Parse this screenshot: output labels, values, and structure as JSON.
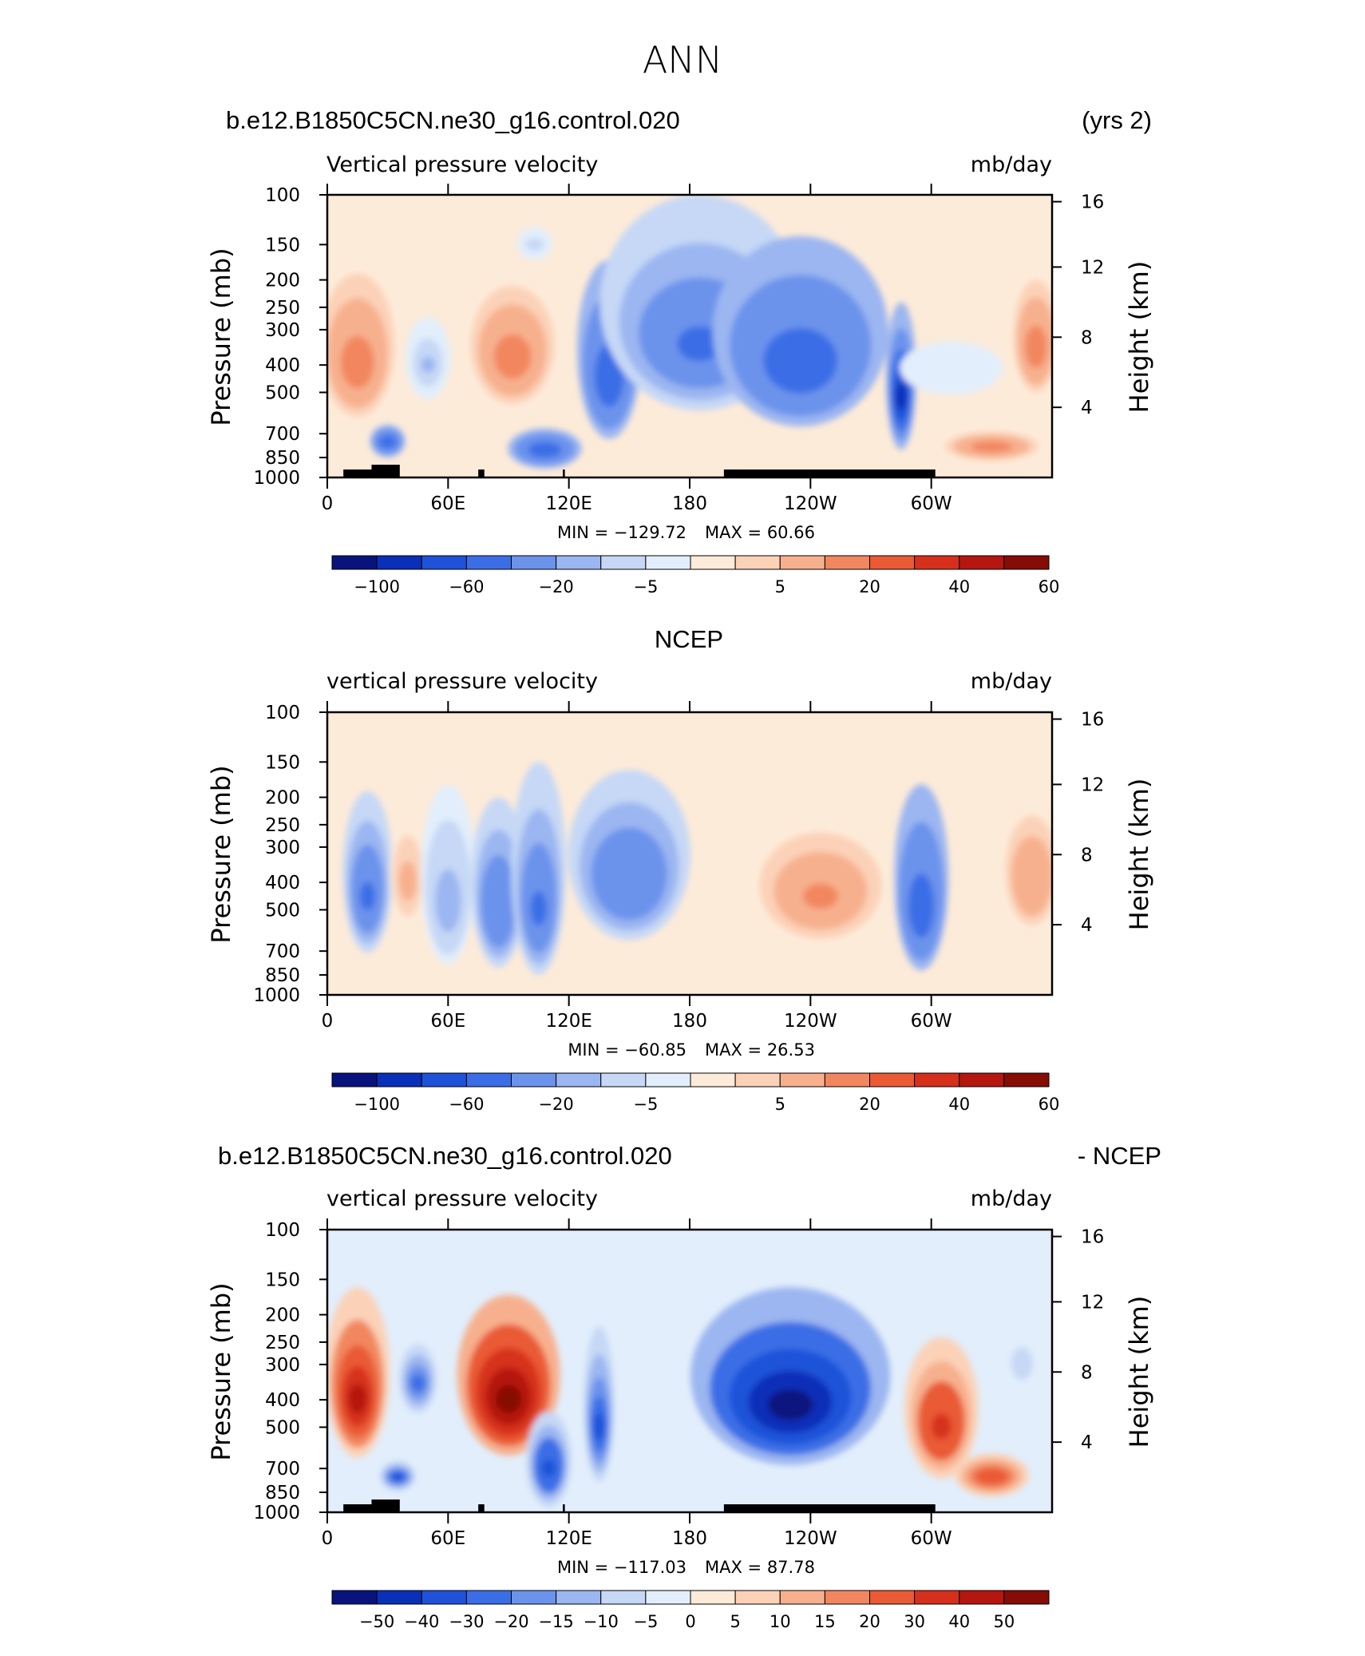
{
  "page_title": "ANN",
  "chart_data": [
    {
      "type": "heatmap",
      "panel": "model",
      "left_title": "b.e12.B1850C5CN.ne30_g16.control.020",
      "right_title": "(yrs 2)",
      "subtitle": "Vertical pressure velocity",
      "units": "mb/day",
      "ylabel": "Pressure (mb)",
      "ylabel_right": "Height (km)",
      "x_ticks": [
        "0",
        "60E",
        "120E",
        "180",
        "120W",
        "60W"
      ],
      "y_ticks": [
        "100",
        "150",
        "200",
        "250",
        "300",
        "400",
        "500",
        "700",
        "850",
        "1000"
      ],
      "y_ticks_right": [
        "16",
        "12",
        "8",
        "4"
      ],
      "min_label": "MIN = −129.72",
      "max_label": "MAX = 60.66",
      "min": -129.72,
      "max": 60.66,
      "colorbar_labels": [
        "−100",
        "−60",
        "−20",
        "−5",
        "5",
        "20",
        "40",
        "60"
      ],
      "features": [
        {
          "lon": 15,
          "p": 400,
          "rx": 14,
          "dp": 420,
          "value": 30
        },
        {
          "lon": 30,
          "p": 750,
          "rx": 6,
          "dp": 200,
          "value": -50
        },
        {
          "lon": 50,
          "p": 400,
          "rx": 8,
          "dp": 260,
          "value": -12
        },
        {
          "lon": 92,
          "p": 380,
          "rx": 16,
          "dp": 340,
          "value": 30
        },
        {
          "lon": 103,
          "p": 150,
          "rx": 6,
          "dp": 40,
          "value": -8
        },
        {
          "lon": 108,
          "p": 800,
          "rx": 14,
          "dp": 260,
          "value": -55
        },
        {
          "lon": 140,
          "p": 450,
          "rx": 12,
          "dp": 560,
          "value": -55
        },
        {
          "lon": 185,
          "p": 340,
          "rx": 40,
          "dp": 480,
          "value": -45
        },
        {
          "lon": 235,
          "p": 400,
          "rx": 35,
          "dp": 520,
          "value": -50
        },
        {
          "lon": 285,
          "p": 520,
          "rx": 5,
          "dp": 560,
          "value": -90
        },
        {
          "lon": 310,
          "p": 420,
          "rx": 20,
          "dp": 180,
          "value": -4
        },
        {
          "lon": 330,
          "p": 780,
          "rx": 18,
          "dp": 180,
          "value": 28
        },
        {
          "lon": 352,
          "p": 350,
          "rx": 8,
          "dp": 300,
          "value": 30
        }
      ]
    },
    {
      "type": "heatmap",
      "panel": "obs",
      "left_title": "",
      "center_title": "NCEP",
      "right_title": "",
      "subtitle": "vertical pressure velocity",
      "units": "mb/day",
      "ylabel": "Pressure (mb)",
      "ylabel_right": "Height (km)",
      "x_ticks": [
        "0",
        "60E",
        "120E",
        "180",
        "120W",
        "60W"
      ],
      "y_ticks": [
        "100",
        "150",
        "200",
        "250",
        "300",
        "400",
        "500",
        "700",
        "850",
        "1000"
      ],
      "y_ticks_right": [
        "16",
        "12",
        "8",
        "4"
      ],
      "min_label": "MIN = −60.85",
      "max_label": "MAX = 26.53",
      "min": -60.85,
      "max": 26.53,
      "colorbar_labels": [
        "−100",
        "−60",
        "−20",
        "−5",
        "5",
        "20",
        "40",
        "60"
      ],
      "features": [
        {
          "lon": 20,
          "p": 450,
          "rx": 9,
          "dp": 520,
          "value": -40
        },
        {
          "lon": 40,
          "p": 400,
          "rx": 6,
          "dp": 320,
          "value": 15
        },
        {
          "lon": 60,
          "p": 480,
          "rx": 10,
          "dp": 600,
          "value": -15
        },
        {
          "lon": 85,
          "p": 500,
          "rx": 10,
          "dp": 600,
          "value": -38
        },
        {
          "lon": 105,
          "p": 500,
          "rx": 10,
          "dp": 700,
          "value": -45
        },
        {
          "lon": 150,
          "p": 400,
          "rx": 24,
          "dp": 480,
          "value": -38
        },
        {
          "lon": 245,
          "p": 450,
          "rx": 30,
          "dp": 460,
          "value": 22
        },
        {
          "lon": 295,
          "p": 500,
          "rx": 10,
          "dp": 640,
          "value": -50
        },
        {
          "lon": 350,
          "p": 400,
          "rx": 12,
          "dp": 420,
          "value": 18
        }
      ]
    },
    {
      "type": "heatmap",
      "panel": "difference",
      "left_title": "b.e12.B1850C5CN.ne30_g16.control.020",
      "right_title": "- NCEP",
      "subtitle": "vertical pressure velocity",
      "units": "mb/day",
      "ylabel": "Pressure (mb)",
      "ylabel_right": "Height (km)",
      "x_ticks": [
        "0",
        "60E",
        "120E",
        "180",
        "120W",
        "60W"
      ],
      "y_ticks": [
        "100",
        "150",
        "200",
        "250",
        "300",
        "400",
        "500",
        "700",
        "850",
        "1000"
      ],
      "y_ticks_right": [
        "16",
        "12",
        "8",
        "4"
      ],
      "min_label": "MIN = −117.03",
      "max_label": "MAX = 87.78",
      "min": -117.03,
      "max": 87.78,
      "colorbar_labels": [
        "−50",
        "−40",
        "−30",
        "−20",
        "−15",
        "−10",
        "−5",
        "0",
        "5",
        "10",
        "15",
        "20",
        "30",
        "40",
        "50"
      ],
      "features": [
        {
          "lon": 15,
          "p": 400,
          "rx": 12,
          "dp": 480,
          "value": 45
        },
        {
          "lon": 35,
          "p": 750,
          "rx": 6,
          "dp": 180,
          "value": -30
        },
        {
          "lon": 45,
          "p": 350,
          "rx": 8,
          "dp": 240,
          "value": -20
        },
        {
          "lon": 90,
          "p": 400,
          "rx": 20,
          "dp": 460,
          "value": 55
        },
        {
          "lon": 110,
          "p": 700,
          "rx": 8,
          "dp": 520,
          "value": -35
        },
        {
          "lon": 135,
          "p": 500,
          "rx": 5,
          "dp": 560,
          "value": -30
        },
        {
          "lon": 230,
          "p": 420,
          "rx": 40,
          "dp": 520,
          "value": -60
        },
        {
          "lon": 305,
          "p": 500,
          "rx": 14,
          "dp": 520,
          "value": 35
        },
        {
          "lon": 330,
          "p": 750,
          "rx": 14,
          "dp": 260,
          "value": 30
        },
        {
          "lon": 345,
          "p": 300,
          "rx": 8,
          "dp": 200,
          "value": -8
        }
      ]
    }
  ],
  "colors": {
    "blues": [
      "#08137e",
      "#0a2fb8",
      "#1f52d9",
      "#3b6ee6",
      "#6c93ec",
      "#9bb6f1",
      "#c6d8f6",
      "#e2eefb"
    ],
    "reds": [
      "#fdebd9",
      "#fbd2b8",
      "#f7b08e",
      "#f2875f",
      "#ea5a35",
      "#d6301c",
      "#b5160f",
      "#860c06"
    ]
  }
}
